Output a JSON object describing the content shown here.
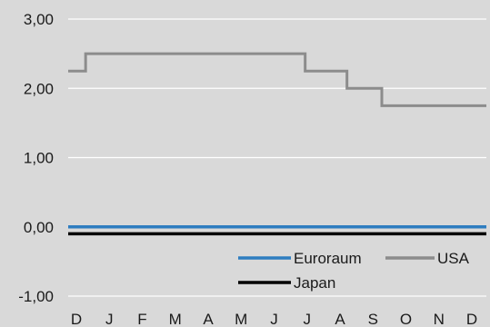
{
  "chart_data": {
    "type": "line",
    "title": "",
    "xlabel": "",
    "ylabel": "",
    "x_categories": [
      "D",
      "J",
      "F",
      "M",
      "A",
      "M",
      "J",
      "J",
      "A",
      "S",
      "O",
      "N",
      "D"
    ],
    "y_ticks": [
      "3,00",
      "2,00",
      "1,00",
      "0,00",
      "-1,00"
    ],
    "ylim": [
      -1.0,
      3.0
    ],
    "grid": true,
    "legend_position": "bottom-right",
    "series": [
      {
        "name": "Euroraum",
        "color": "#2e7dc0",
        "step": true,
        "points": [
          [
            0,
            0.0
          ],
          [
            12,
            0.0
          ]
        ]
      },
      {
        "name": "USA",
        "color": "#8c8c8c",
        "step": true,
        "points": [
          [
            0,
            2.25
          ],
          [
            0.5,
            2.5
          ],
          [
            6.8,
            2.25
          ],
          [
            8.0,
            2.0
          ],
          [
            9.0,
            1.75
          ],
          [
            12,
            1.75
          ]
        ]
      },
      {
        "name": "Japan",
        "color": "#000000",
        "step": true,
        "points": [
          [
            0,
            -0.1
          ],
          [
            12,
            -0.1
          ]
        ]
      }
    ]
  }
}
